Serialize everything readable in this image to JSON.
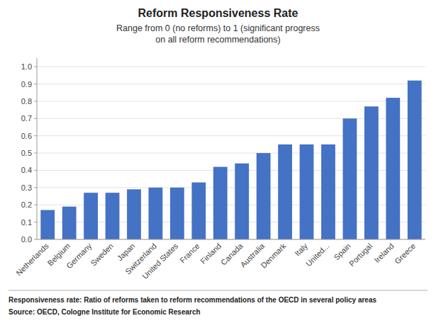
{
  "chart_data": {
    "type": "bar",
    "title": "Reform Responsiveness Rate",
    "subtitle": [
      "Range from 0 (no reforms) to 1 (significant progress",
      "on all reform recommendations)"
    ],
    "annotations": [
      "Responsiveness rate:  Ratio of reforms taken to reform recommendations of the OECD in several policy areas",
      "Source: OECD, Cologne Institute for Economic Research"
    ],
    "categories": [
      "Netherlands",
      "Belgium",
      "Germany",
      "Sweden",
      "Japan",
      "Switzerland",
      "United States",
      "France",
      "Finland",
      "Canada",
      "Australia",
      "Denmark",
      "Italy",
      "United...",
      "Spain",
      "Portugal",
      "Ireland",
      "Greece"
    ],
    "values": [
      0.17,
      0.19,
      0.27,
      0.27,
      0.29,
      0.3,
      0.3,
      0.33,
      0.42,
      0.44,
      0.5,
      0.55,
      0.55,
      0.55,
      0.7,
      0.77,
      0.82,
      0.92
    ],
    "color": "#4472C4",
    "ylim": [
      0,
      1.05
    ],
    "yticks": [
      {
        "value": 0.0,
        "label": "0.0"
      },
      0.1,
      0.2,
      0.3,
      0.4,
      0.5,
      0.6,
      0.7,
      0.8,
      0.9,
      {
        "value": 1.0,
        "label": "1.0"
      }
    ],
    "grid": true
  }
}
